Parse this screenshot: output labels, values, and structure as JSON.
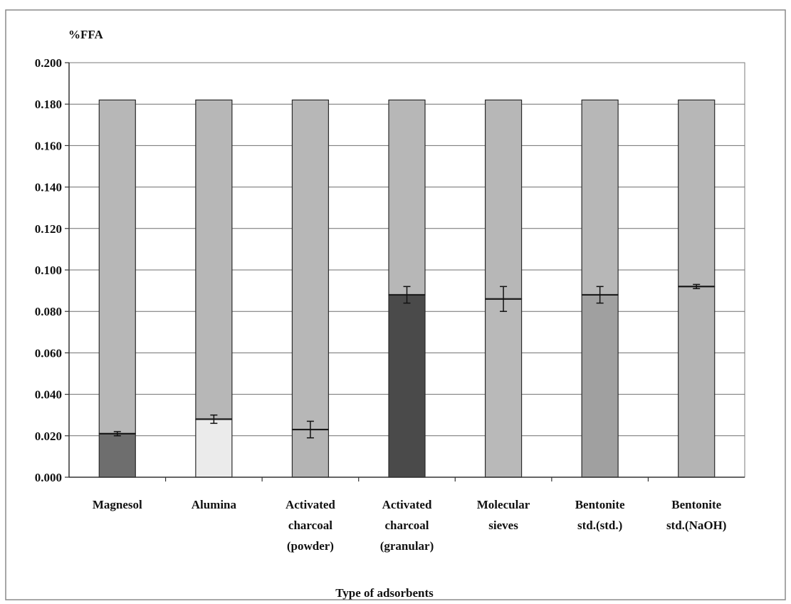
{
  "chart_data": {
    "type": "bar",
    "title": "",
    "ylabel": "%FFA",
    "xlabel": "Type of adsorbents",
    "ylim": [
      0,
      0.2
    ],
    "yticks": [
      "0.000",
      "0.020",
      "0.040",
      "0.060",
      "0.080",
      "0.100",
      "0.120",
      "0.140",
      "0.160",
      "0.180",
      "0.200"
    ],
    "grid": true,
    "legend": "none",
    "categories": [
      [
        "Magnesol"
      ],
      [
        "Alumina"
      ],
      [
        "Activated",
        "charcoal",
        "(powder)"
      ],
      [
        "Activated",
        "charcoal",
        "(granular)"
      ],
      [
        "Molecular",
        "sieves"
      ],
      [
        "Bentonite",
        "std.(std.)"
      ],
      [
        "Bentonite",
        "std.(NaOH)"
      ]
    ],
    "series": [
      {
        "values": [
          0.021,
          0.028,
          0.023,
          0.088,
          0.086,
          0.088,
          0.092
        ],
        "errors": [
          0.001,
          0.002,
          0.004,
          0.004,
          0.006,
          0.004,
          0.001
        ],
        "colors": [
          "#6e6e6e",
          "#ebebeb",
          "#b4b4b4",
          "#4a4a4a",
          "#b9b9b9",
          "#a0a0a0",
          "#b4b4b4"
        ]
      },
      {
        "values": [
          0.161,
          0.154,
          0.159,
          0.094,
          0.096,
          0.094,
          0.09
        ],
        "colors": [
          "#b7b7b7",
          "#b7b7b7",
          "#b7b7b7",
          "#b7b7b7",
          "#b7b7b7",
          "#b7b7b7",
          "#b7b7b7"
        ]
      }
    ]
  }
}
